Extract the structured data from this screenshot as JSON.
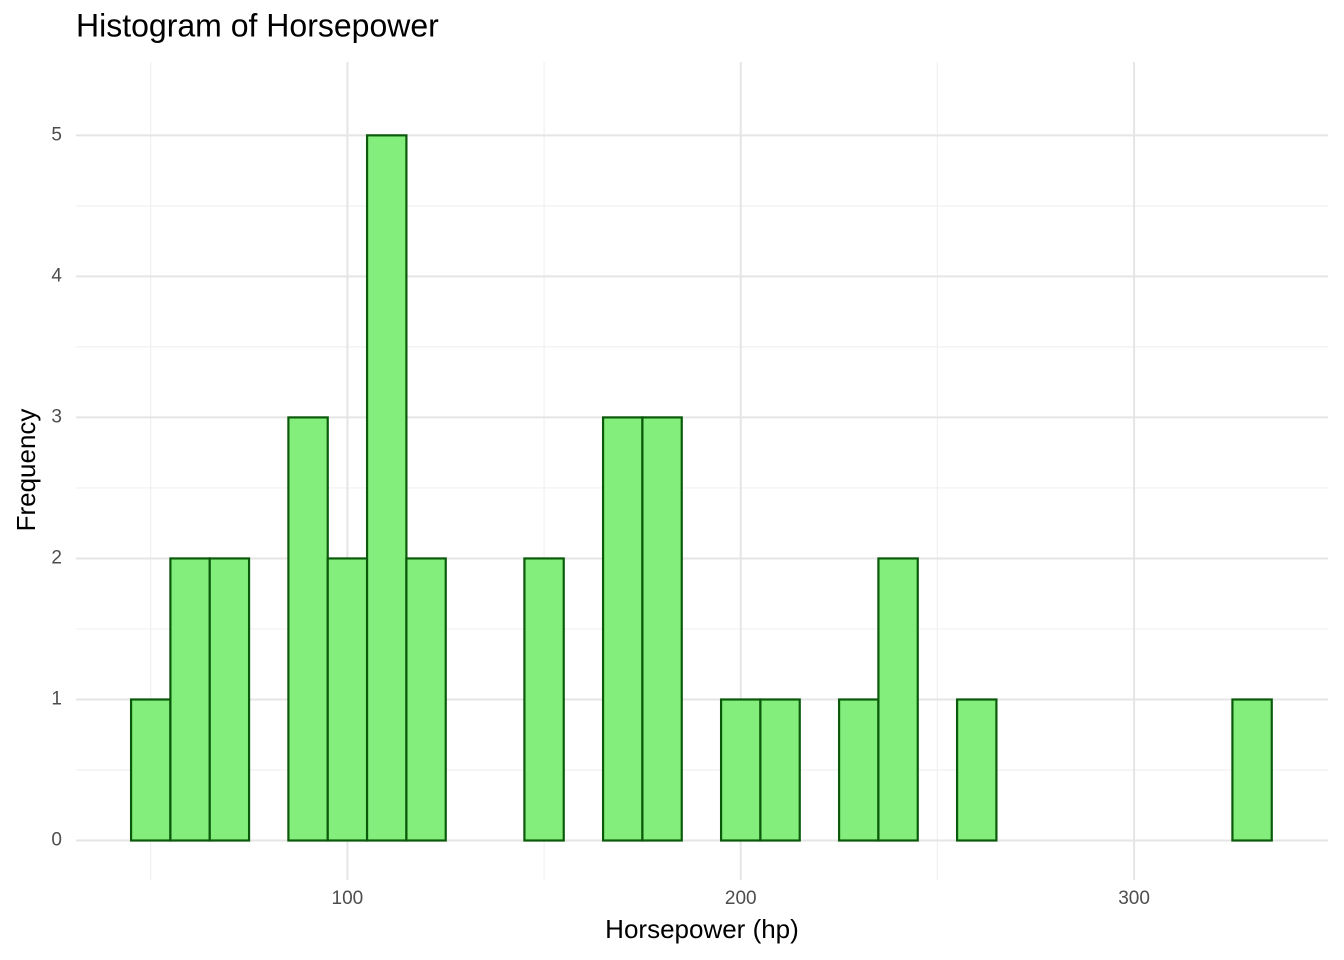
{
  "chart_data": {
    "type": "histogram",
    "title": "Histogram of Horsepower",
    "x_label": "Horsepower (hp)",
    "y_label": "Frequency",
    "bins": [
      45,
      55,
      65,
      75,
      85,
      95,
      105,
      115,
      125,
      135,
      145,
      155,
      165,
      175,
      185,
      195,
      205,
      215,
      225,
      235,
      245,
      255,
      265,
      275,
      285,
      295,
      305,
      315,
      325,
      335
    ],
    "values": [
      1,
      2,
      2,
      0,
      3,
      2,
      5,
      2,
      0,
      0,
      2,
      0,
      3,
      3,
      0,
      1,
      1,
      0,
      1,
      2,
      0,
      1,
      0,
      0,
      0,
      0,
      0,
      0,
      1
    ],
    "color": "#83ee7c",
    "edge_color": "#0b5a0b",
    "xlim": [
      31,
      349.3
    ],
    "ylim": [
      -0.28,
      5.52
    ],
    "xticks": [
      100,
      200,
      300
    ],
    "yticks": [
      0,
      1,
      2,
      3,
      4,
      5
    ],
    "xminor": [
      50,
      150,
      250
    ],
    "yminor": [
      0.5,
      1.5,
      2.5,
      3.5,
      4.5
    ],
    "grid": true
  }
}
